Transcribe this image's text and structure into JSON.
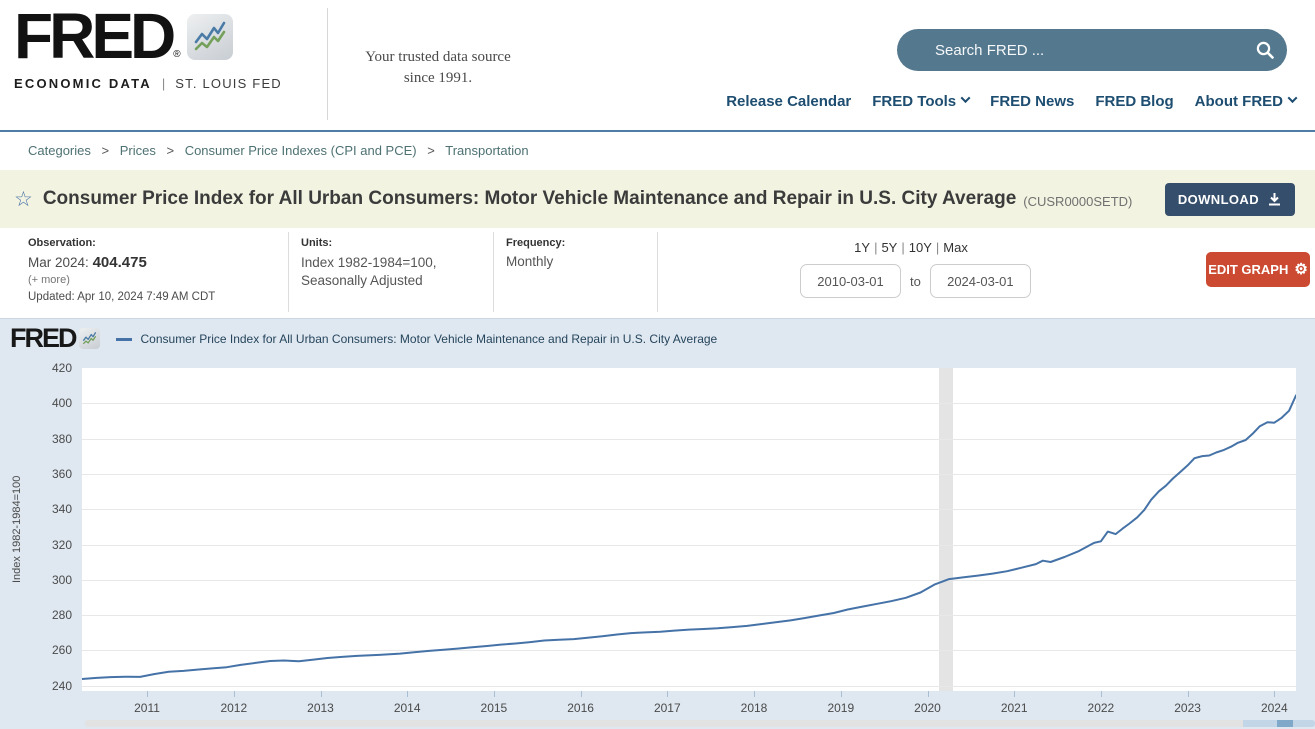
{
  "header": {
    "logo": {
      "brand": "FRED",
      "registered": "®",
      "sub_left": "ECONOMIC DATA",
      "sub_divider": "|",
      "sub_right": "ST. LOUIS FED"
    },
    "tagline_line1": "Your trusted data source",
    "tagline_line2": "since 1991.",
    "search": {
      "placeholder": "Search FRED ..."
    },
    "nav": [
      {
        "label": "Release Calendar",
        "has_dropdown": false
      },
      {
        "label": "FRED Tools",
        "has_dropdown": true
      },
      {
        "label": "FRED News",
        "has_dropdown": false
      },
      {
        "label": "FRED Blog",
        "has_dropdown": false
      },
      {
        "label": "About FRED",
        "has_dropdown": true
      }
    ]
  },
  "breadcrumb": {
    "separator": ">",
    "parts": [
      "Categories",
      "Prices",
      "Consumer Price Indexes (CPI and PCE)",
      "Transportation"
    ]
  },
  "title_bar": {
    "title": "Consumer Price Index for All Urban Consumers: Motor Vehicle Maintenance and Repair in U.S. City Average",
    "series_id": "(CUSR0000SETD)",
    "download_label": "DOWNLOAD"
  },
  "meta": {
    "observation": {
      "label": "Observation:",
      "date": "Mar 2024:",
      "value": "404.475",
      "more": "(+ more)",
      "updated": "Updated: Apr 10, 2024 7:49 AM CDT"
    },
    "units": {
      "label": "Units:",
      "line1": "Index 1982-1984=100,",
      "line2": "Seasonally Adjusted"
    },
    "frequency": {
      "label": "Frequency:",
      "value": "Monthly"
    },
    "ranges": {
      "r1": "1Y",
      "r2": "5Y",
      "r3": "10Y",
      "r4": "Max",
      "sep": "|"
    },
    "date_from": "2010-03-01",
    "to_label": "to",
    "date_to": "2024-03-01",
    "edit_graph_label": "EDIT GRAPH"
  },
  "chart": {
    "watermark": "FRED",
    "legend_label": "Consumer Price Index for All Urban Consumers: Motor Vehicle Maintenance and Repair in U.S. City Average",
    "y_axis_title": "Index 1982-1984=100"
  },
  "chart_data": {
    "type": "line",
    "series_name": "Consumer Price Index for All Urban Consumers: Motor Vehicle Maintenance and Repair in U.S. City Average",
    "ylabel": "Index 1982-1984=100",
    "line_color": "#4572a7",
    "recession_band": {
      "start": 2020.13,
      "end": 2020.3,
      "color": "#e4e4e4"
    },
    "grid": true,
    "legend_position": "top",
    "xlim": [
      2010.25,
      2024.25
    ],
    "ylim": [
      237,
      420
    ],
    "y_ticks": [
      240,
      260,
      280,
      300,
      320,
      340,
      360,
      380,
      400,
      420
    ],
    "x_ticks": [
      "2011",
      "2012",
      "2013",
      "2014",
      "2015",
      "2016",
      "2017",
      "2018",
      "2019",
      "2020",
      "2021",
      "2022",
      "2023",
      "2024"
    ],
    "x": [
      2010.25,
      2010.42,
      2010.58,
      2010.75,
      2010.92,
      2011.08,
      2011.25,
      2011.42,
      2011.58,
      2011.75,
      2011.92,
      2012.08,
      2012.25,
      2012.42,
      2012.58,
      2012.75,
      2012.92,
      2013.08,
      2013.25,
      2013.42,
      2013.58,
      2013.75,
      2013.92,
      2014.08,
      2014.25,
      2014.42,
      2014.58,
      2014.75,
      2014.92,
      2015.08,
      2015.25,
      2015.42,
      2015.58,
      2015.75,
      2015.92,
      2016.08,
      2016.25,
      2016.42,
      2016.58,
      2016.75,
      2016.92,
      2017.08,
      2017.25,
      2017.42,
      2017.58,
      2017.75,
      2017.92,
      2018.08,
      2018.25,
      2018.42,
      2018.58,
      2018.75,
      2018.92,
      2019.08,
      2019.25,
      2019.42,
      2019.58,
      2019.75,
      2019.92,
      2020.08,
      2020.25,
      2020.42,
      2020.58,
      2020.75,
      2020.92,
      2021.08,
      2021.25,
      2021.33,
      2021.42,
      2021.58,
      2021.75,
      2021.92,
      2022.0,
      2022.08,
      2022.17,
      2022.25,
      2022.33,
      2022.42,
      2022.5,
      2022.58,
      2022.67,
      2022.75,
      2022.83,
      2022.92,
      2023.0,
      2023.08,
      2023.17,
      2023.25,
      2023.33,
      2023.42,
      2023.5,
      2023.58,
      2023.67,
      2023.75,
      2023.83,
      2023.92,
      2024.0,
      2024.08,
      2024.17,
      2024.25
    ],
    "y": [
      243.8,
      244.4,
      244.9,
      245.1,
      245.0,
      246.6,
      247.9,
      248.4,
      249.1,
      249.8,
      250.5,
      251.8,
      252.9,
      254.0,
      254.3,
      253.9,
      254.8,
      255.7,
      256.3,
      256.9,
      257.2,
      257.7,
      258.2,
      258.9,
      259.7,
      260.4,
      261.0,
      261.8,
      262.5,
      263.3,
      263.9,
      264.7,
      265.6,
      266.0,
      266.4,
      267.2,
      268.0,
      269.0,
      269.8,
      270.2,
      270.6,
      271.2,
      271.8,
      272.1,
      272.5,
      273.2,
      273.9,
      274.9,
      275.9,
      277.0,
      278.3,
      279.8,
      281.2,
      283.2,
      284.8,
      286.4,
      287.9,
      289.8,
      292.8,
      297.3,
      300.4,
      301.5,
      302.4,
      303.5,
      304.9,
      306.8,
      308.9,
      310.8,
      310.1,
      312.9,
      316.4,
      320.9,
      321.8,
      327.3,
      325.9,
      329.0,
      331.9,
      335.4,
      339.6,
      345.4,
      350.2,
      353.3,
      357.4,
      361.3,
      364.8,
      368.9,
      370.1,
      370.4,
      372.1,
      373.6,
      375.4,
      377.6,
      379.2,
      382.7,
      386.9,
      389.3,
      389.0,
      391.6,
      395.8,
      404.475
    ]
  },
  "colors": {
    "nav_link": "#1d4d70",
    "search_bg": "#54788e",
    "breadcrumb_link": "#4e7173",
    "title_bar_bg": "#f2f3e1",
    "download_bg": "#354e6b",
    "edit_graph_bg": "#cb4a31",
    "chart_bg": "#dfe8f1",
    "line": "#4572a7",
    "recession": "#e4e4e4"
  }
}
